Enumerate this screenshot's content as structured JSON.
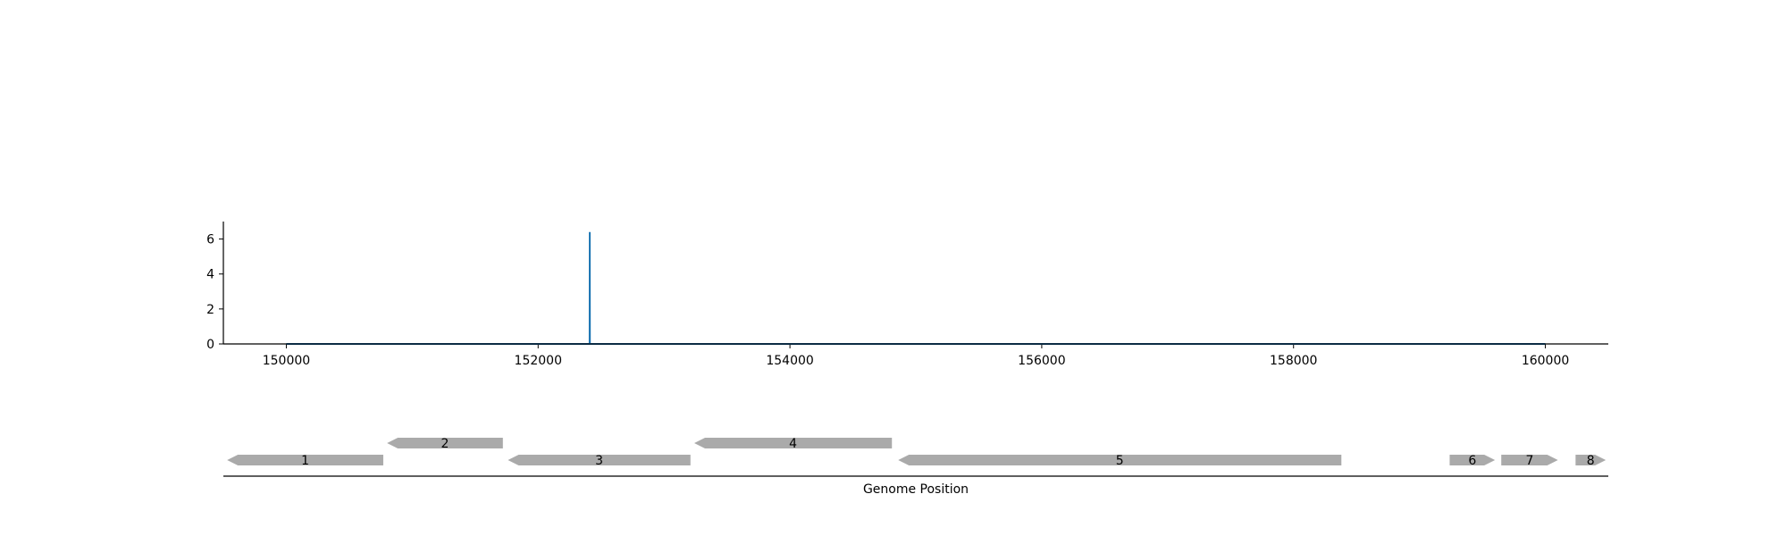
{
  "chart_data": [
    {
      "type": "line",
      "title": "",
      "xlabel": "",
      "ylabel": "",
      "xlim": [
        149500,
        160500
      ],
      "ylim": [
        0,
        7
      ],
      "x_ticks": [
        150000,
        152000,
        154000,
        156000,
        158000,
        160000
      ],
      "y_ticks": [
        0,
        2,
        4,
        6
      ],
      "series": [
        {
          "color": "#1f77b4",
          "points": [
            [
              150000,
              0
            ],
            [
              152409,
              0
            ],
            [
              152410,
              6.4
            ],
            [
              152411,
              0
            ],
            [
              160000,
              0
            ]
          ]
        }
      ],
      "grid": false,
      "legend": null
    },
    {
      "type": "gene-track",
      "xlabel": "Genome Position",
      "xlim": [
        149500,
        160500
      ],
      "color": "#aaaaaa",
      "features": [
        {
          "label": "1",
          "start": 149530,
          "end": 150770,
          "strand": -1,
          "row": 0
        },
        {
          "label": "2",
          "start": 150800,
          "end": 151720,
          "strand": -1,
          "row": 1
        },
        {
          "label": "3",
          "start": 151760,
          "end": 153210,
          "strand": -1,
          "row": 0
        },
        {
          "label": "4",
          "start": 153240,
          "end": 154810,
          "strand": -1,
          "row": 1
        },
        {
          "label": "5",
          "start": 154860,
          "end": 158380,
          "strand": -1,
          "row": 0
        },
        {
          "label": "6",
          "start": 159240,
          "end": 159600,
          "strand": 1,
          "row": 0
        },
        {
          "label": "7",
          "start": 159650,
          "end": 160100,
          "strand": 1,
          "row": 0
        },
        {
          "label": "8",
          "start": 160240,
          "end": 160480,
          "strand": 1,
          "row": 0
        }
      ]
    }
  ]
}
